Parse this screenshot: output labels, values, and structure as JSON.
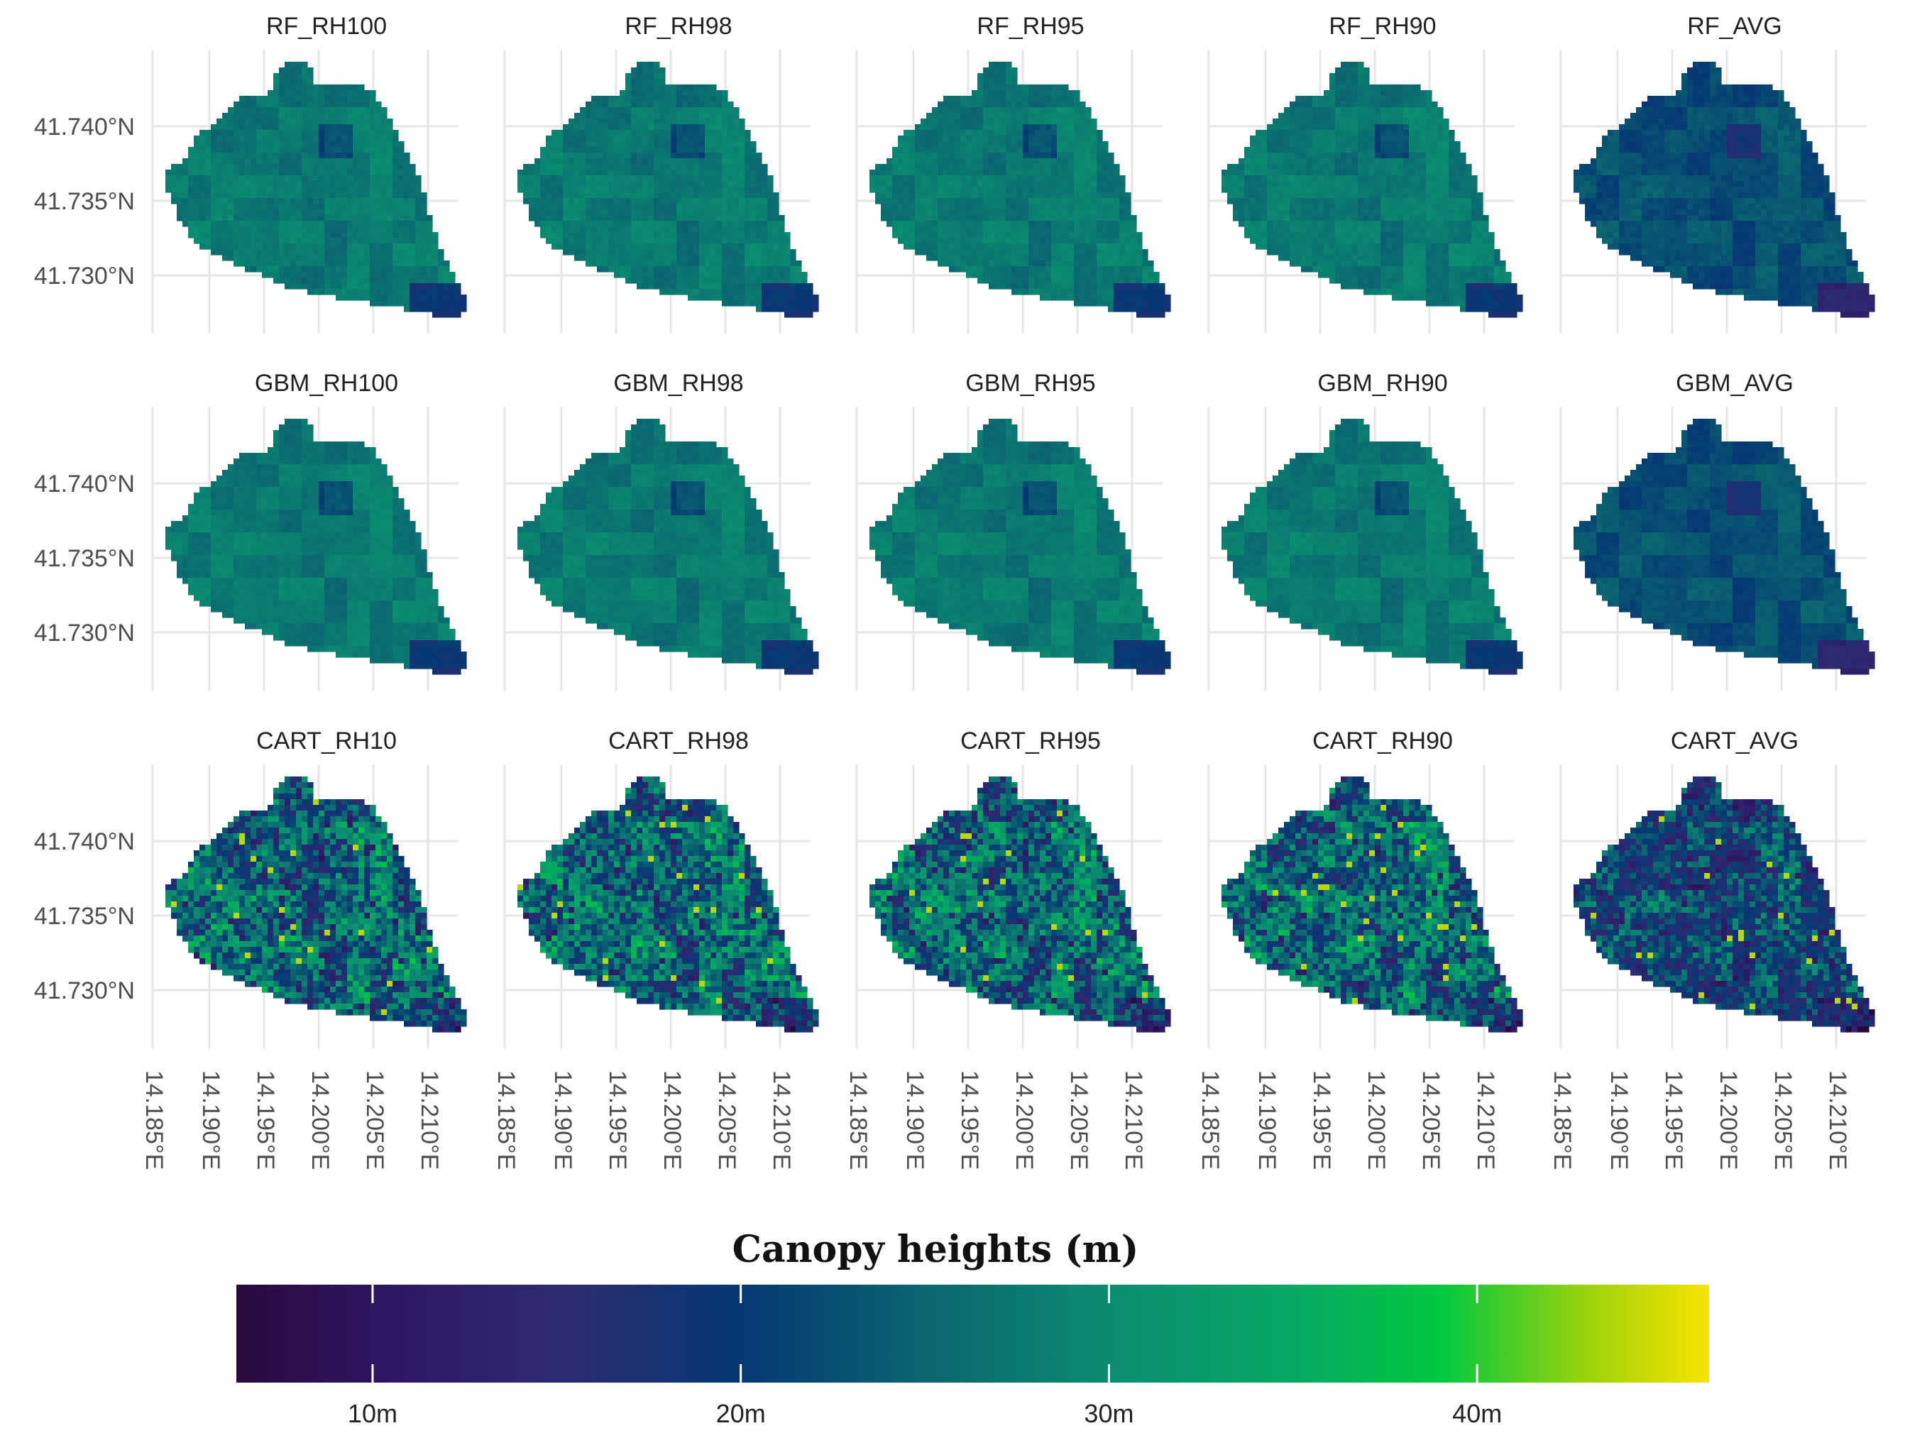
{
  "panels": [
    {
      "title": "RF_RH100",
      "tone": "mid",
      "speckle": 0.15
    },
    {
      "title": "RF_RH98",
      "tone": "mid",
      "speckle": 0.15
    },
    {
      "title": "RF_RH95",
      "tone": "mid",
      "speckle": 0.15
    },
    {
      "title": "RF_RH90",
      "tone": "mid",
      "speckle": 0.15
    },
    {
      "title": "RF_AVG",
      "tone": "low",
      "speckle": 0.15
    },
    {
      "title": "GBM_RH100",
      "tone": "mid",
      "speckle": 0.12
    },
    {
      "title": "GBM_RH98",
      "tone": "mid",
      "speckle": 0.12
    },
    {
      "title": "GBM_RH95",
      "tone": "mid",
      "speckle": 0.12
    },
    {
      "title": "GBM_RH90",
      "tone": "mid",
      "speckle": 0.12
    },
    {
      "title": "GBM_AVG",
      "tone": "low",
      "speckle": 0.12
    },
    {
      "title": "CART_RH10",
      "tone": "cart",
      "speckle": 0.6
    },
    {
      "title": "CART_RH98",
      "tone": "cart",
      "speckle": 0.6
    },
    {
      "title": "CART_RH95",
      "tone": "cart",
      "speckle": 0.6
    },
    {
      "title": "CART_RH90",
      "tone": "cart",
      "speckle": 0.6
    },
    {
      "title": "CART_AVG",
      "tone": "cartlow",
      "speckle": 0.6
    }
  ],
  "lat_labels": [
    "41.740°N",
    "41.735°N",
    "41.730°N"
  ],
  "lon_labels": [
    "14.185°E",
    "14.190°E",
    "14.195°E",
    "14.200°E",
    "14.205°E",
    "14.210°E"
  ],
  "legend": {
    "title": "Canopy heights (m)",
    "ticks": [
      "10m",
      "20m",
      "30m",
      "40m"
    ],
    "tick_values": [
      10,
      20,
      30,
      40
    ],
    "range": [
      6.3,
      46.3
    ],
    "colors": [
      {
        "value": 6.3,
        "color": "#2a0a3d"
      },
      {
        "value": 10,
        "color": "#2d1560"
      },
      {
        "value": 15,
        "color": "#2e2a72"
      },
      {
        "value": 20,
        "color": "#053873"
      },
      {
        "value": 25,
        "color": "#0b6670"
      },
      {
        "value": 30,
        "color": "#0b8c70"
      },
      {
        "value": 35,
        "color": "#06a864"
      },
      {
        "value": 39,
        "color": "#00c840"
      },
      {
        "value": 43,
        "color": "#9cd20a"
      },
      {
        "value": 46.3,
        "color": "#f8e300"
      }
    ]
  }
}
